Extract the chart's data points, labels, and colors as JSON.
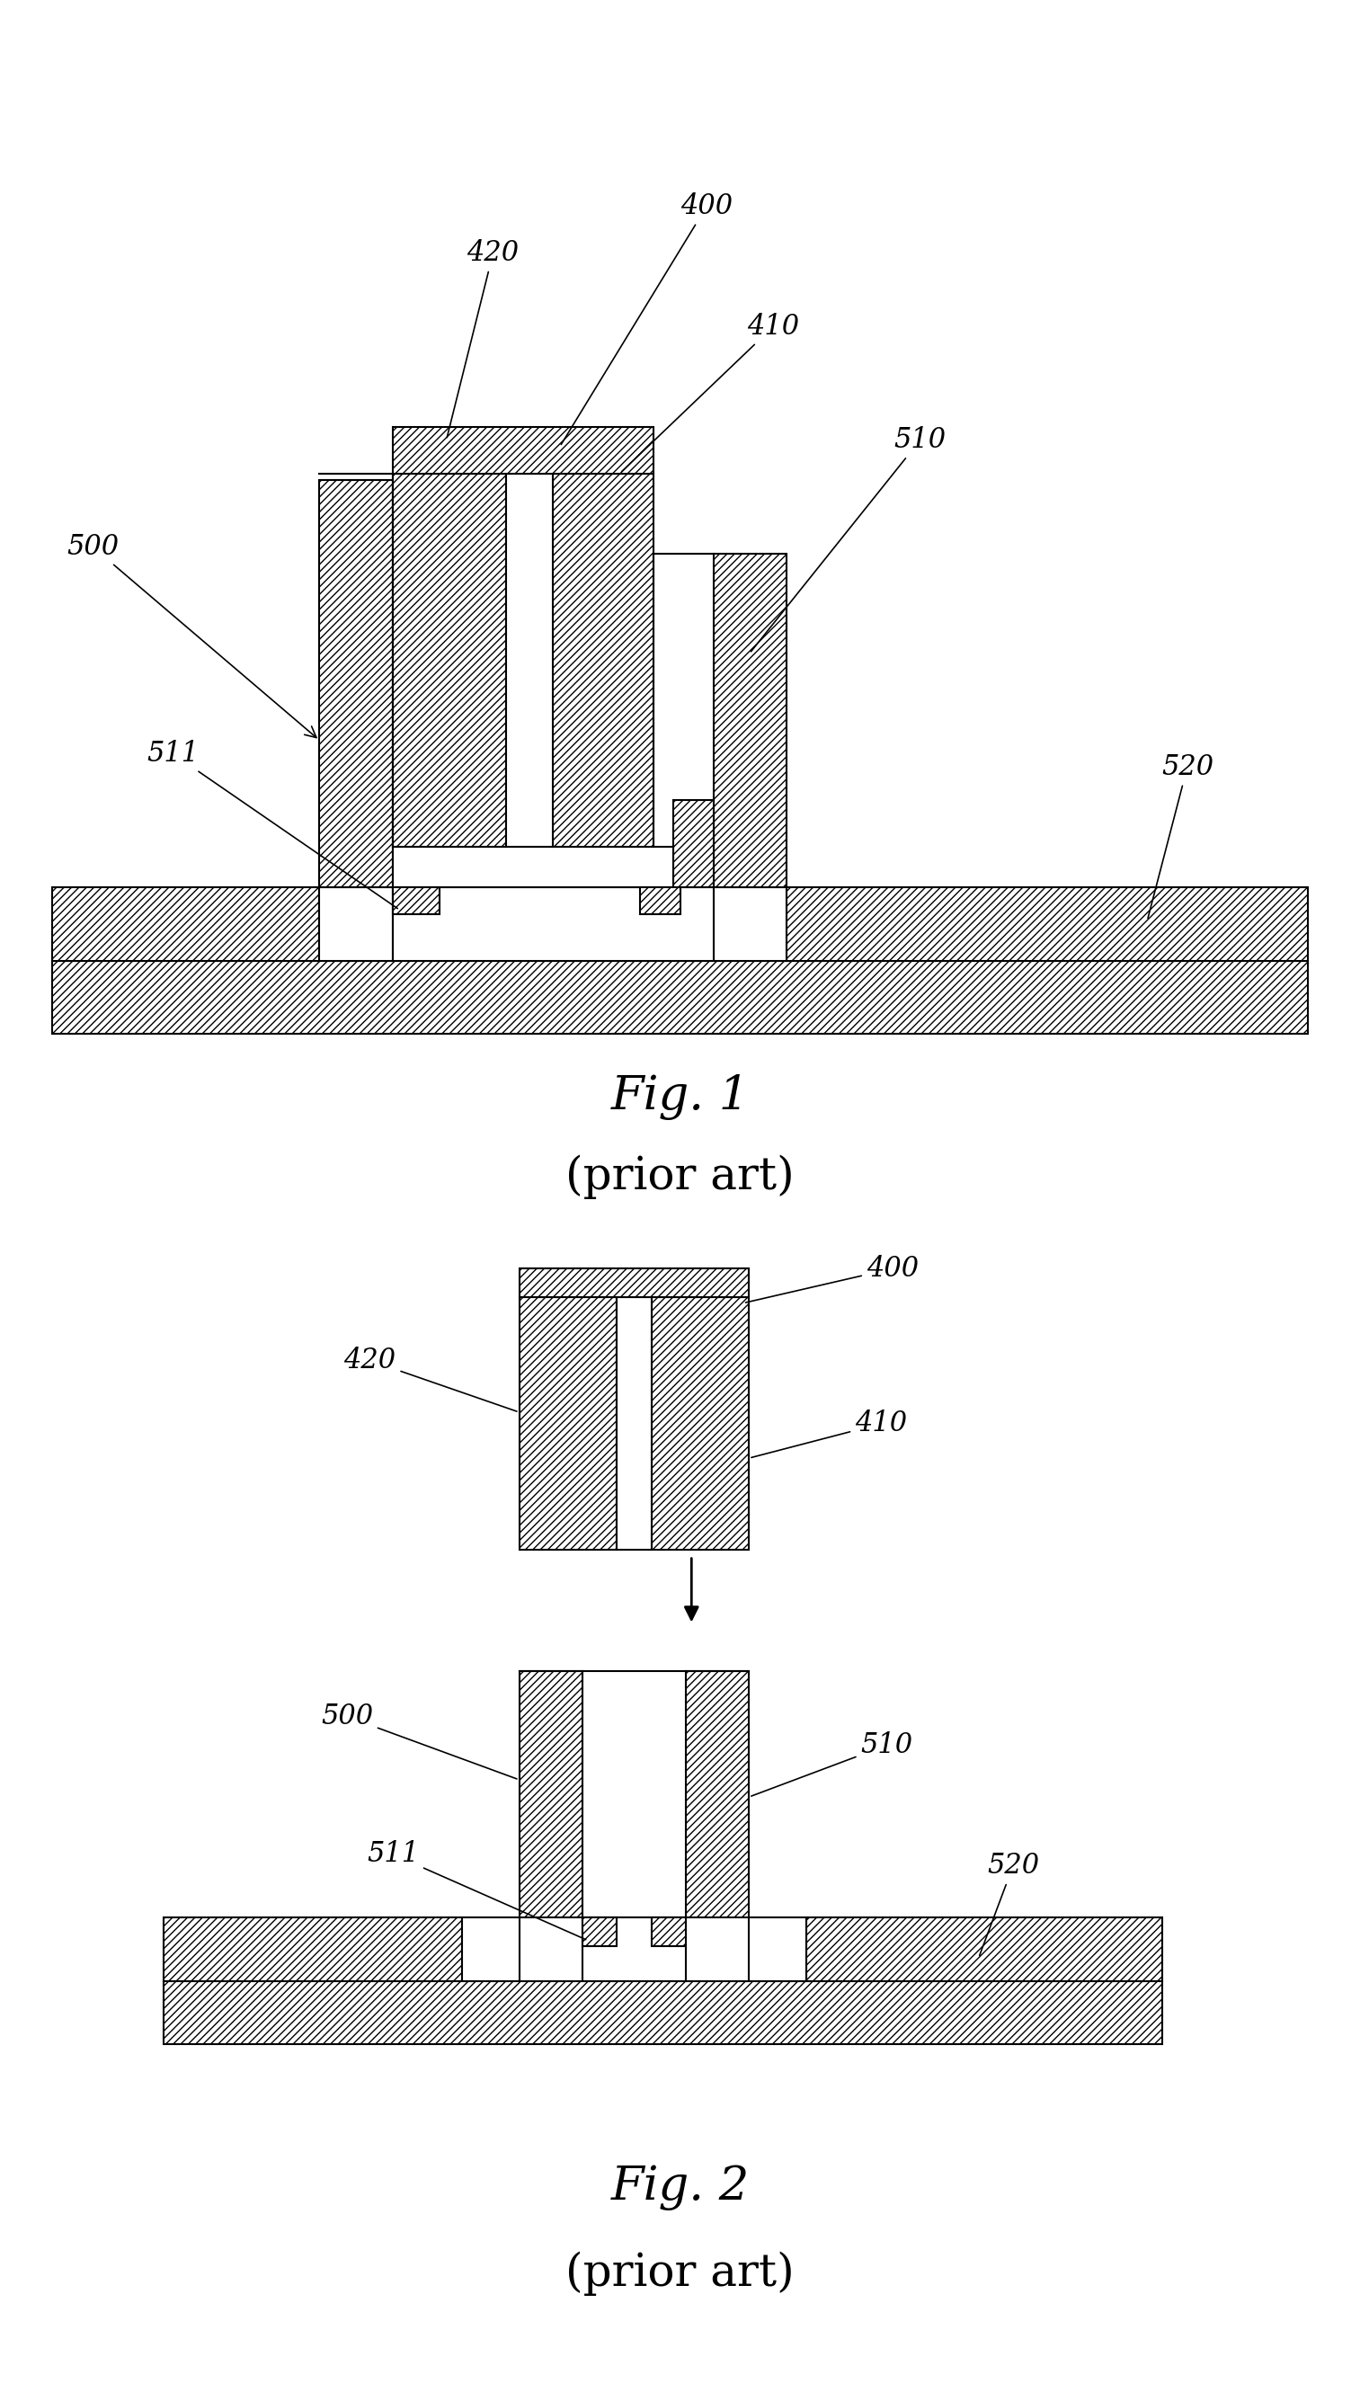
{
  "fig1_title": "Fig. 1",
  "fig1_subtitle": "(prior art)",
  "fig2_title": "Fig. 2",
  "fig2_subtitle": "(prior art)",
  "bg_color": "#ffffff",
  "line_color": "#000000",
  "hatch_pattern": "////",
  "font_size_label": 22,
  "font_size_title": 38,
  "font_size_subtitle": 36
}
